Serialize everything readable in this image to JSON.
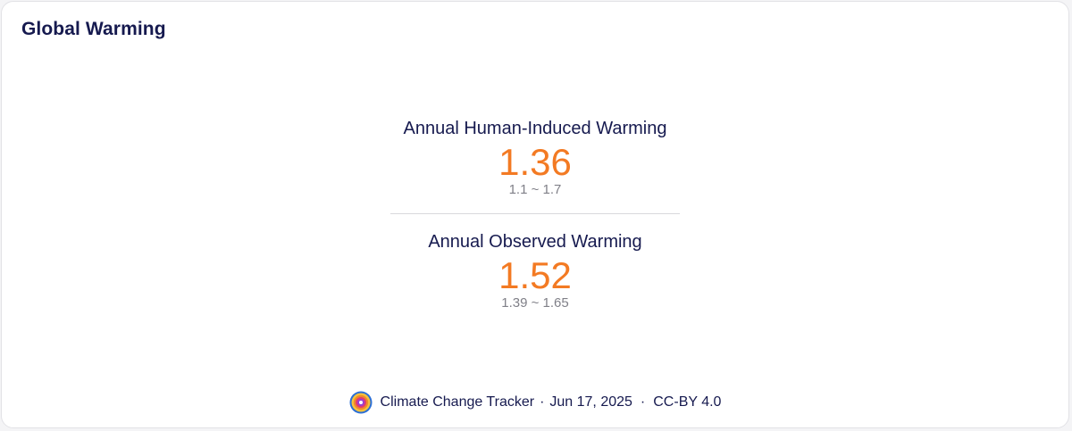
{
  "card": {
    "title": "Global Warming"
  },
  "metrics": [
    {
      "label": "Annual Human-Induced Warming",
      "value": "1.36",
      "range": "1.1 ~ 1.7"
    },
    {
      "label": "Annual Observed Warming",
      "value": "1.52",
      "range": "1.39 ~ 1.65"
    }
  ],
  "footer": {
    "source": "Climate Change Tracker",
    "date": "Jun 17, 2025",
    "license": "CC-BY 4.0",
    "separator": "·",
    "logo_icon": "climate-change-tracker-logo-icon"
  },
  "colors": {
    "accent": "#f37a23",
    "text": "#161a4f",
    "muted": "#808088"
  }
}
